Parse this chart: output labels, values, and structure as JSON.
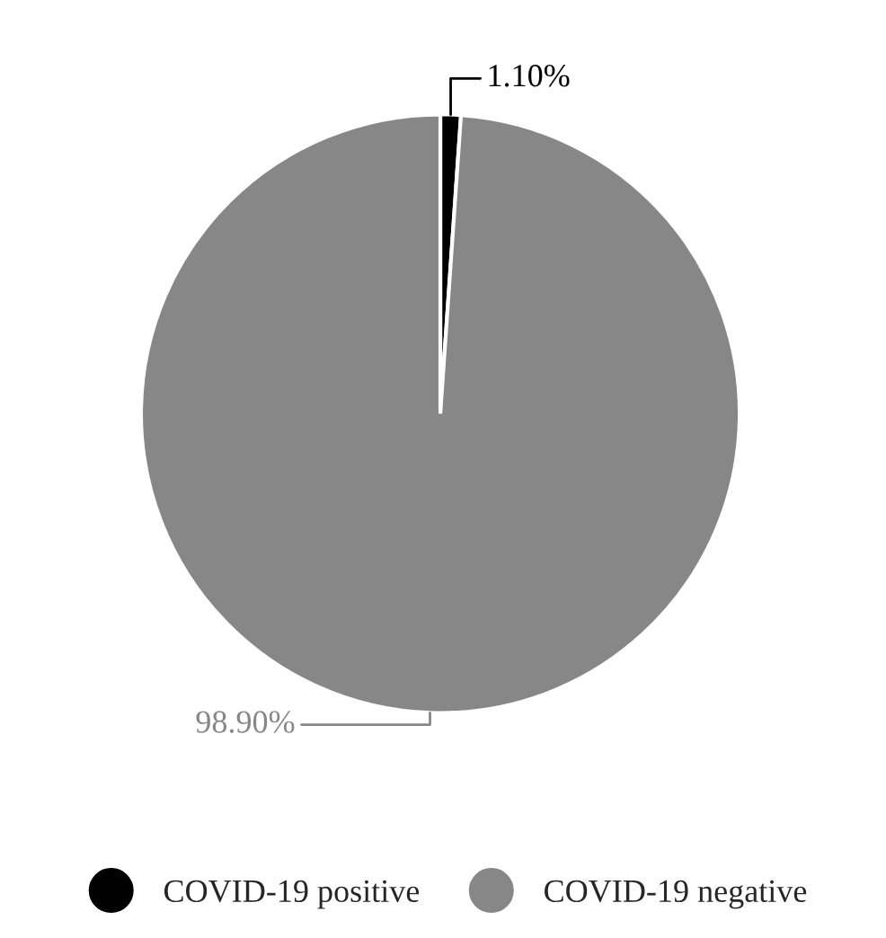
{
  "chart_data": {
    "type": "pie",
    "categories": [
      "COVID-19 positive",
      "COVID-19 negative"
    ],
    "values": [
      1.1,
      98.9
    ],
    "colors": [
      "#000000",
      "#878787"
    ],
    "value_labels": [
      "1.10%",
      "98.90%"
    ],
    "legend": "bottom"
  }
}
